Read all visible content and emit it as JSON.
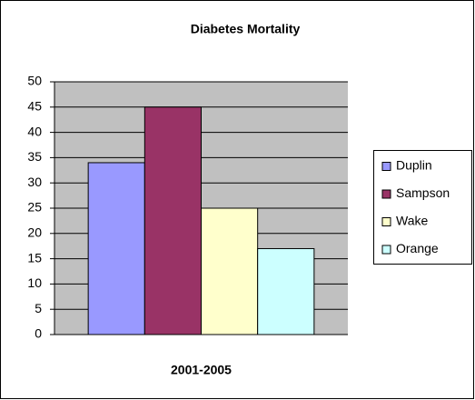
{
  "chart_data": {
    "type": "bar",
    "title": "Diabetes Mortality",
    "categories": [
      "2001-2005"
    ],
    "series": [
      {
        "name": "Duplin",
        "color": "#9999ff",
        "values": [
          34
        ]
      },
      {
        "name": "Sampson",
        "color": "#993366",
        "values": [
          45
        ]
      },
      {
        "name": "Wake",
        "color": "#ffffcc",
        "values": [
          25
        ]
      },
      {
        "name": "Orange",
        "color": "#ccffff",
        "values": [
          17
        ]
      }
    ],
    "ylim": [
      0,
      50
    ],
    "yticks": [
      0,
      5,
      10,
      15,
      20,
      25,
      30,
      35,
      40,
      45,
      50
    ],
    "grid": true,
    "legend": "right"
  }
}
